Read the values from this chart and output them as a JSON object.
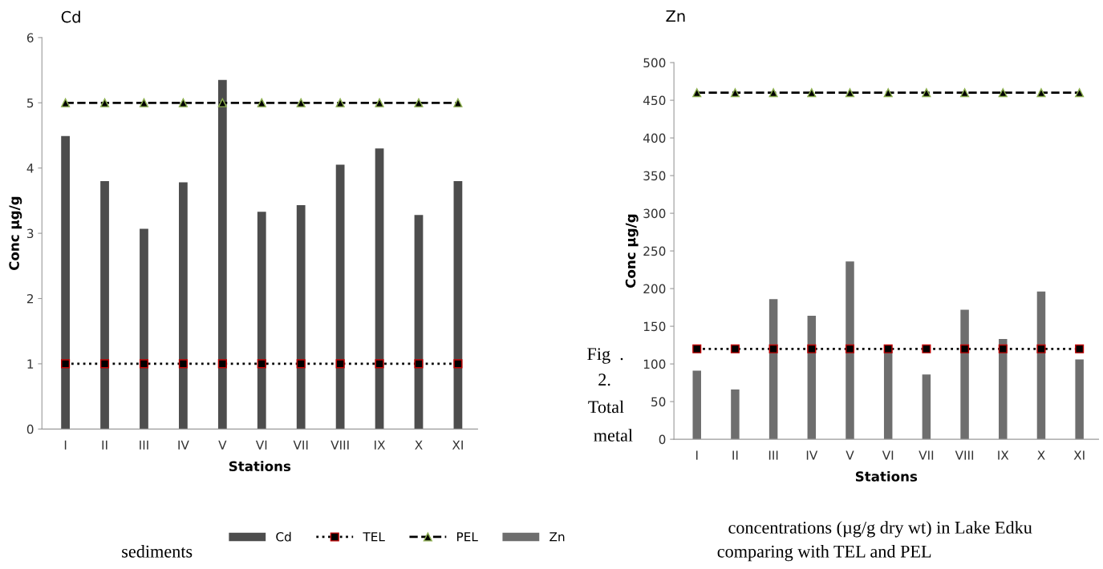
{
  "chart_data": [
    {
      "type": "bar",
      "title": "Cd",
      "xlabel": "Stations",
      "ylabel": "Conc µg/g",
      "categories": [
        "I",
        "II",
        "III",
        "IV",
        "V",
        "VI",
        "VII",
        "VIII",
        "IX",
        "X",
        "XI"
      ],
      "series": [
        {
          "name": "Cd",
          "color": "#4d4d4d",
          "values": [
            4.49,
            3.8,
            3.07,
            3.78,
            5.35,
            3.33,
            3.43,
            4.05,
            4.3,
            3.28,
            3.8
          ]
        },
        {
          "name": "TEL",
          "type": "line",
          "color": "#000000",
          "marker": "square",
          "line_style": "dotted",
          "values": [
            1,
            1,
            1,
            1,
            1,
            1,
            1,
            1,
            1,
            1,
            1
          ]
        },
        {
          "name": "PEL",
          "type": "line",
          "color": "#000000",
          "marker": "triangle",
          "line_style": "dashed",
          "values": [
            5,
            5,
            5,
            5,
            5,
            5,
            5,
            5,
            5,
            5,
            5
          ]
        }
      ],
      "ylim": [
        0,
        6
      ],
      "yticks": [
        0,
        1,
        2,
        3,
        4,
        5,
        6
      ],
      "grid": false,
      "legend": "bottom"
    },
    {
      "type": "bar",
      "title": "Zn",
      "xlabel": "Stations",
      "ylabel": "Conc µg/g",
      "categories": [
        "I",
        "II",
        "III",
        "IV",
        "V",
        "VI",
        "VII",
        "VIII",
        "IX",
        "X",
        "XI"
      ],
      "series": [
        {
          "name": "Zn",
          "color": "#6e6e6e",
          "values": [
            91,
            66,
            186,
            164,
            236,
            116,
            86,
            172,
            133,
            196,
            106
          ]
        },
        {
          "name": "TEL",
          "type": "line",
          "color": "#000000",
          "marker": "square",
          "line_style": "dotted",
          "values": [
            120,
            120,
            120,
            120,
            120,
            120,
            120,
            120,
            120,
            120,
            120
          ]
        },
        {
          "name": "PEL",
          "type": "line",
          "color": "#000000",
          "marker": "triangle",
          "line_style": "dashed",
          "values": [
            460,
            460,
            460,
            460,
            460,
            460,
            460,
            460,
            460,
            460,
            460
          ]
        }
      ],
      "ylim": [
        0,
        500
      ],
      "yticks": [
        0,
        50,
        100,
        150,
        200,
        250,
        300,
        350,
        400,
        450,
        500
      ],
      "grid": false,
      "legend": "bottom",
      "annotations": [
        "Fig  .",
        "2.",
        "Total",
        "metal",
        "concentrations (µg/g dry wt) in Lake Edku",
        "sediments",
        "comparing with TEL and PEL"
      ]
    }
  ]
}
